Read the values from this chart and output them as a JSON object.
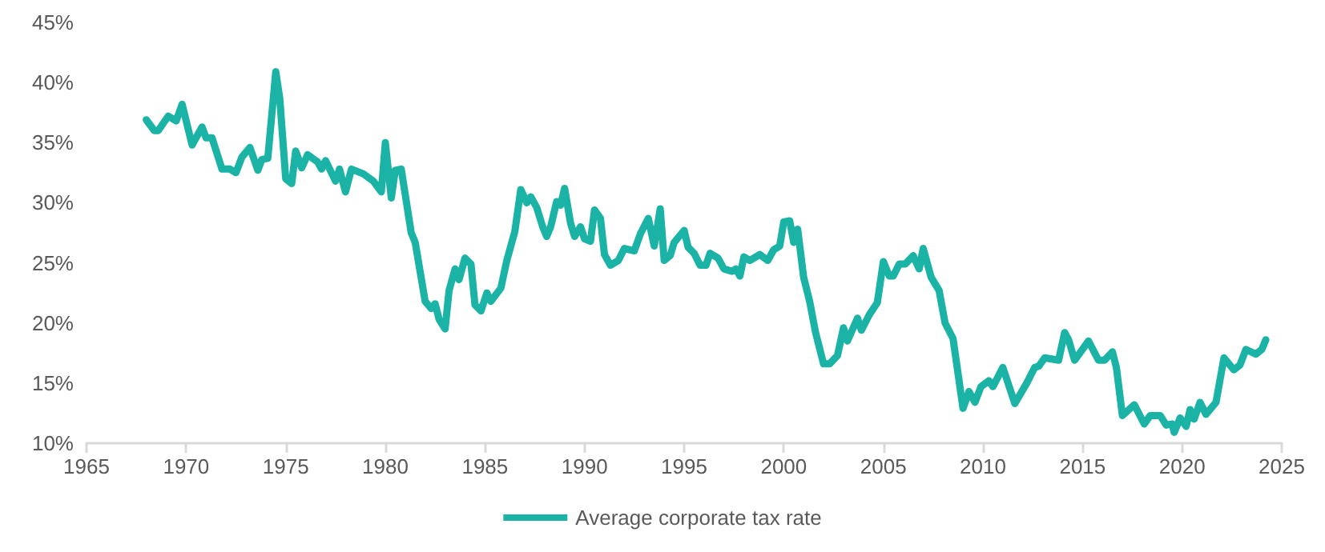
{
  "chart_data": {
    "type": "line",
    "xlim": [
      1965,
      2025
    ],
    "xticks": [
      1965,
      1970,
      1975,
      1980,
      1985,
      1990,
      1995,
      2000,
      2005,
      2010,
      2015,
      2020,
      2025
    ],
    "ylim": [
      10,
      45
    ],
    "yticks": [
      {
        "value": 10,
        "label": "10%"
      },
      {
        "value": 15,
        "label": "15%"
      },
      {
        "value": 20,
        "label": "20%"
      },
      {
        "value": 25,
        "label": "25%"
      },
      {
        "value": 30,
        "label": "30%"
      },
      {
        "value": 35,
        "label": "35%"
      },
      {
        "value": 40,
        "label": "40%"
      },
      {
        "value": 45,
        "label": "45%"
      }
    ],
    "grid": false,
    "legend": "bottom",
    "marker": "none",
    "line_style": "solid",
    "series": [
      {
        "name": "Average corporate tax rate",
        "color": "#1ab3a6",
        "x": [
          1968.0,
          1968.4,
          1968.6,
          1969.1,
          1969.5,
          1969.8,
          1970.3,
          1970.8,
          1971.0,
          1971.3,
          1971.8,
          1972.2,
          1972.5,
          1972.8,
          1973.2,
          1973.6,
          1973.8,
          1974.1,
          1974.5,
          1974.7,
          1975.0,
          1975.3,
          1975.5,
          1975.8,
          1976.1,
          1976.6,
          1976.8,
          1977.0,
          1977.5,
          1977.7,
          1978.0,
          1978.3,
          1978.9,
          1979.4,
          1979.8,
          1980.0,
          1980.3,
          1980.5,
          1980.8,
          1981.3,
          1981.5,
          1982.0,
          1982.3,
          1982.5,
          1982.7,
          1983.0,
          1983.2,
          1983.5,
          1983.7,
          1984.0,
          1984.3,
          1984.5,
          1984.8,
          1985.1,
          1985.3,
          1985.8,
          1986.1,
          1986.5,
          1986.8,
          1987.1,
          1987.3,
          1987.6,
          1987.9,
          1988.1,
          1988.3,
          1988.6,
          1988.8,
          1989.0,
          1989.3,
          1989.5,
          1989.8,
          1990.0,
          1990.3,
          1990.5,
          1990.8,
          1991.0,
          1991.3,
          1991.7,
          1992.0,
          1992.5,
          1992.8,
          1993.2,
          1993.5,
          1993.8,
          1994.0,
          1994.3,
          1994.5,
          1995.0,
          1995.2,
          1995.5,
          1995.8,
          1996.1,
          1996.3,
          1996.7,
          1997.0,
          1997.4,
          1997.6,
          1997.8,
          1998.0,
          1998.3,
          1998.8,
          1999.2,
          1999.5,
          1999.8,
          2000.0,
          2000.3,
          2000.5,
          2000.7,
          2001.0,
          2001.3,
          2001.6,
          2002.0,
          2002.3,
          2002.7,
          2003.0,
          2003.2,
          2003.7,
          2003.9,
          2004.3,
          2004.7,
          2005.0,
          2005.3,
          2005.5,
          2005.8,
          2006.1,
          2006.5,
          2006.8,
          2007.0,
          2007.4,
          2007.8,
          2008.1,
          2008.5,
          2009.0,
          2009.3,
          2009.6,
          2009.9,
          2010.3,
          2010.5,
          2011.0,
          2011.6,
          2012.2,
          2012.6,
          2012.8,
          2013.1,
          2013.8,
          2014.1,
          2014.3,
          2014.6,
          2015.3,
          2015.8,
          2016.1,
          2016.5,
          2016.7,
          2017.0,
          2017.6,
          2018.1,
          2018.4,
          2018.9,
          2019.2,
          2019.5,
          2019.6,
          2019.9,
          2020.2,
          2020.4,
          2020.6,
          2020.9,
          2021.2,
          2021.7,
          2022.1,
          2022.6,
          2022.9,
          2023.2,
          2023.7,
          2024.0,
          2024.2
        ],
        "values": [
          36.9,
          36.0,
          36.0,
          37.2,
          36.8,
          38.2,
          34.8,
          36.3,
          35.4,
          35.4,
          32.8,
          32.8,
          32.5,
          33.8,
          34.6,
          32.7,
          33.6,
          33.7,
          40.9,
          38.7,
          32.0,
          31.6,
          34.3,
          32.9,
          34.0,
          33.4,
          32.8,
          33.5,
          31.8,
          32.8,
          30.9,
          32.8,
          32.4,
          31.8,
          30.9,
          35.0,
          30.4,
          32.7,
          32.8,
          27.5,
          26.7,
          21.8,
          21.2,
          21.6,
          20.3,
          19.5,
          22.7,
          24.5,
          23.6,
          25.4,
          24.9,
          21.5,
          21.0,
          22.5,
          21.8,
          22.9,
          25.2,
          27.6,
          31.1,
          30.0,
          30.5,
          29.6,
          28.0,
          27.2,
          28.0,
          30.1,
          29.8,
          31.2,
          28.3,
          27.2,
          28.0,
          27.0,
          26.8,
          29.4,
          28.7,
          25.7,
          24.8,
          25.2,
          26.2,
          26.0,
          27.4,
          28.7,
          26.4,
          29.5,
          25.2,
          25.6,
          26.7,
          27.7,
          26.3,
          25.8,
          24.8,
          24.8,
          25.8,
          25.4,
          24.5,
          24.3,
          24.5,
          23.9,
          25.5,
          25.2,
          25.7,
          25.2,
          26.1,
          26.4,
          28.4,
          28.5,
          26.7,
          27.8,
          23.8,
          21.8,
          19.2,
          16.6,
          16.6,
          17.3,
          19.6,
          18.5,
          20.4,
          19.4,
          20.7,
          21.7,
          25.1,
          23.9,
          23.9,
          24.9,
          24.9,
          25.6,
          24.5,
          26.2,
          23.8,
          22.7,
          20.0,
          18.7,
          12.9,
          14.3,
          13.4,
          14.7,
          15.2,
          14.7,
          16.3,
          13.3,
          15.0,
          16.3,
          16.4,
          17.1,
          16.9,
          19.2,
          18.6,
          16.9,
          18.5,
          16.9,
          16.9,
          17.6,
          16.3,
          12.3,
          13.2,
          11.6,
          12.3,
          12.3,
          11.5,
          11.6,
          10.9,
          12.1,
          11.4,
          12.8,
          12.0,
          13.4,
          12.4,
          13.4,
          17.1,
          16.1,
          16.5,
          17.8,
          17.4,
          17.8,
          18.6
        ]
      }
    ]
  }
}
